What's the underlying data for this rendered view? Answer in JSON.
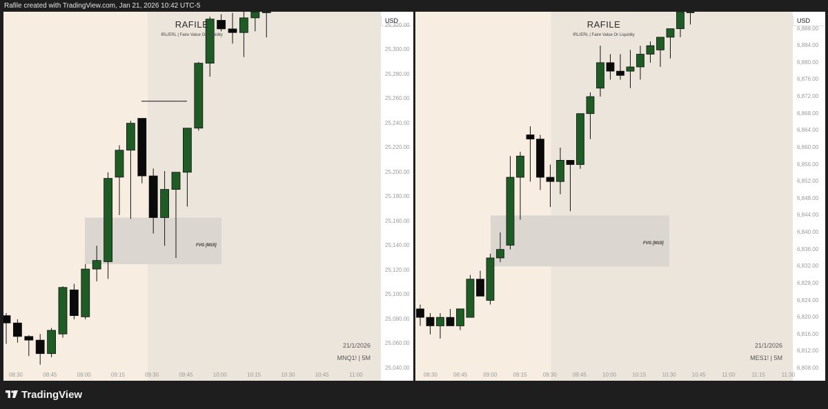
{
  "header": {
    "text": "Rafile created with TradingView.com, Jan 21, 2026 10:42 UTC-5"
  },
  "footer": {
    "logo_text": "TradingView",
    "logo_icon": "tradingview-logo-icon"
  },
  "colors": {
    "bull": "#1e5b25",
    "bear": "#0a0a0a",
    "background": "#f7eee1",
    "shade": "#ebe5dc",
    "fvg": "#dcd6d0"
  },
  "left": {
    "title": "RAFILE",
    "subtitle": "IRL/ERL | Faire Value Or Liquidity",
    "currency": "USD",
    "price_ticks": [
      "25,320.00",
      "25,300.00",
      "25,280.00",
      "25,260.00",
      "25,240.00",
      "25,220.00",
      "25,200.00",
      "25,180.00",
      "25,160.00",
      "25,140.00",
      "25,120.00",
      "25,100.00",
      "25,080.00",
      "25,060.00",
      "25,040.00"
    ],
    "time_ticks": [
      "08:30",
      "08:45",
      "09:00",
      "09:15",
      "09:30",
      "09:45",
      "10:00",
      "10:15",
      "10:30",
      "10:45",
      "11:00"
    ],
    "fvg_label": "FVG [M15]",
    "date": "21/1/2026",
    "symbol": "MNQ1! | 5M",
    "chart_data": {
      "type": "candlestick",
      "symbol": "MNQ1!",
      "timeframe": "5M",
      "ylim": [
        25040,
        25331
      ],
      "candles": [
        {
          "o": 25083,
          "h": 25085,
          "l": 25060,
          "c": 25077
        },
        {
          "o": 25077,
          "h": 25080,
          "l": 25061,
          "c": 25066
        },
        {
          "o": 25066,
          "h": 25067,
          "l": 25050,
          "c": 25063
        },
        {
          "o": 25063,
          "h": 25068,
          "l": 25043,
          "c": 25052
        },
        {
          "o": 25052,
          "h": 25073,
          "l": 25049,
          "c": 25071
        },
        {
          "o": 25068,
          "h": 25107,
          "l": 25065,
          "c": 25106
        },
        {
          "o": 25104,
          "h": 25109,
          "l": 25080,
          "c": 25083
        },
        {
          "o": 25082,
          "h": 25125,
          "l": 25080,
          "c": 25121
        },
        {
          "o": 25121,
          "h": 25140,
          "l": 25111,
          "c": 25128
        },
        {
          "o": 25127,
          "h": 25200,
          "l": 25113,
          "c": 25195
        },
        {
          "o": 25196,
          "h": 25222,
          "l": 25165,
          "c": 25218
        },
        {
          "o": 25218,
          "h": 25242,
          "l": 25162,
          "c": 25240
        },
        {
          "o": 25244,
          "h": 25244,
          "l": 25191,
          "c": 25197
        },
        {
          "o": 25197,
          "h": 25203,
          "l": 25150,
          "c": 25163
        },
        {
          "o": 25163,
          "h": 25201,
          "l": 25140,
          "c": 25186
        },
        {
          "o": 25186,
          "h": 25200,
          "l": 25130,
          "c": 25200
        },
        {
          "o": 25200,
          "h": 25231,
          "l": 25172,
          "c": 25236
        },
        {
          "o": 25236,
          "h": 25290,
          "l": 25234,
          "c": 25289
        },
        {
          "o": 25289,
          "h": 25327,
          "l": 25278,
          "c": 25325
        },
        {
          "o": 25324,
          "h": 25329,
          "l": 25315,
          "c": 25317
        },
        {
          "o": 25317,
          "h": 25330,
          "l": 25305,
          "c": 25314
        },
        {
          "o": 25314,
          "h": 25332,
          "l": 25294,
          "c": 25326
        },
        {
          "o": 25326,
          "h": 25331,
          "l": 25315,
          "c": 25331
        },
        {
          "o": 25331,
          "h": 25331,
          "l": 25310,
          "c": 25331
        }
      ],
      "fvg_zone": [
        25125,
        25163
      ],
      "level_line": 25258,
      "shaded_from_candle": 13
    }
  },
  "right": {
    "title": "RAFILE",
    "subtitle": "IRL/ERL | Faire Value Or Liquidity",
    "currency": "USD",
    "price_ticks": [
      "6,888.00",
      "6,884.00",
      "6,880.00",
      "6,876.00",
      "6,872.00",
      "6,868.00",
      "6,864.00",
      "6,860.00",
      "6,856.00",
      "6,852.00",
      "6,848.00",
      "6,844.00",
      "6,840.00",
      "6,836.00",
      "6,832.00",
      "6,828.00",
      "6,824.00",
      "6,820.00",
      "6,816.00",
      "6,812.00",
      "6,808.00"
    ],
    "time_ticks": [
      "08:30",
      "08:45",
      "09:00",
      "09:15",
      "09:30",
      "09:45",
      "10:00",
      "10:15",
      "10:30",
      "10:45",
      "11:00",
      "11:15",
      "11:30"
    ],
    "fvg_label": "FVG [M15]",
    "date": "21/1/2026",
    "symbol": "MES1! | 5M",
    "chart_data": {
      "type": "candlestick",
      "symbol": "MES1!",
      "timeframe": "5M",
      "ylim": [
        6808,
        6892
      ],
      "candles": [
        {
          "o": 6822,
          "h": 6823,
          "l": 6818,
          "c": 6820
        },
        {
          "o": 6820,
          "h": 6821,
          "l": 6816,
          "c": 6818
        },
        {
          "o": 6818,
          "h": 6821,
          "l": 6815,
          "c": 6820
        },
        {
          "o": 6820,
          "h": 6822,
          "l": 6818,
          "c": 6818
        },
        {
          "o": 6818,
          "h": 6822,
          "l": 6817,
          "c": 6822
        },
        {
          "o": 6820,
          "h": 6830,
          "l": 6820,
          "c": 6829
        },
        {
          "o": 6829,
          "h": 6831,
          "l": 6825,
          "c": 6825
        },
        {
          "o": 6824,
          "h": 6835,
          "l": 6823,
          "c": 6834
        },
        {
          "o": 6834,
          "h": 6840,
          "l": 6833,
          "c": 6836
        },
        {
          "o": 6837,
          "h": 6858,
          "l": 6836,
          "c": 6853
        },
        {
          "o": 6853,
          "h": 6859,
          "l": 6843,
          "c": 6858
        },
        {
          "o": 6863,
          "h": 6865,
          "l": 6852,
          "c": 6862
        },
        {
          "o": 6862,
          "h": 6863,
          "l": 6850,
          "c": 6853
        },
        {
          "o": 6853,
          "h": 6856,
          "l": 6846,
          "c": 6852
        },
        {
          "o": 6852,
          "h": 6860,
          "l": 6849,
          "c": 6857
        },
        {
          "o": 6857,
          "h": 6857,
          "l": 6845,
          "c": 6856
        },
        {
          "o": 6856,
          "h": 6867,
          "l": 6855,
          "c": 6868
        },
        {
          "o": 6868,
          "h": 6873,
          "l": 6862,
          "c": 6872
        },
        {
          "o": 6874,
          "h": 6884,
          "l": 6872,
          "c": 6880
        },
        {
          "o": 6880,
          "h": 6882,
          "l": 6876,
          "c": 6878
        },
        {
          "o": 6878,
          "h": 6882,
          "l": 6876,
          "c": 6877
        },
        {
          "o": 6878,
          "h": 6883,
          "l": 6874,
          "c": 6879
        },
        {
          "o": 6879,
          "h": 6884,
          "l": 6876,
          "c": 6882
        },
        {
          "o": 6882,
          "h": 6885,
          "l": 6880,
          "c": 6884
        },
        {
          "o": 6883,
          "h": 6884,
          "l": 6879,
          "c": 6886
        },
        {
          "o": 6886,
          "h": 6887,
          "l": 6881,
          "c": 6888
        },
        {
          "o": 6888,
          "h": 6892,
          "l": 6886,
          "c": 6892
        },
        {
          "o": 6892,
          "h": 6892,
          "l": 6889,
          "c": 6892
        }
      ],
      "fvg_zone": [
        6832,
        6844
      ],
      "shaded_from_candle": 12
    }
  }
}
